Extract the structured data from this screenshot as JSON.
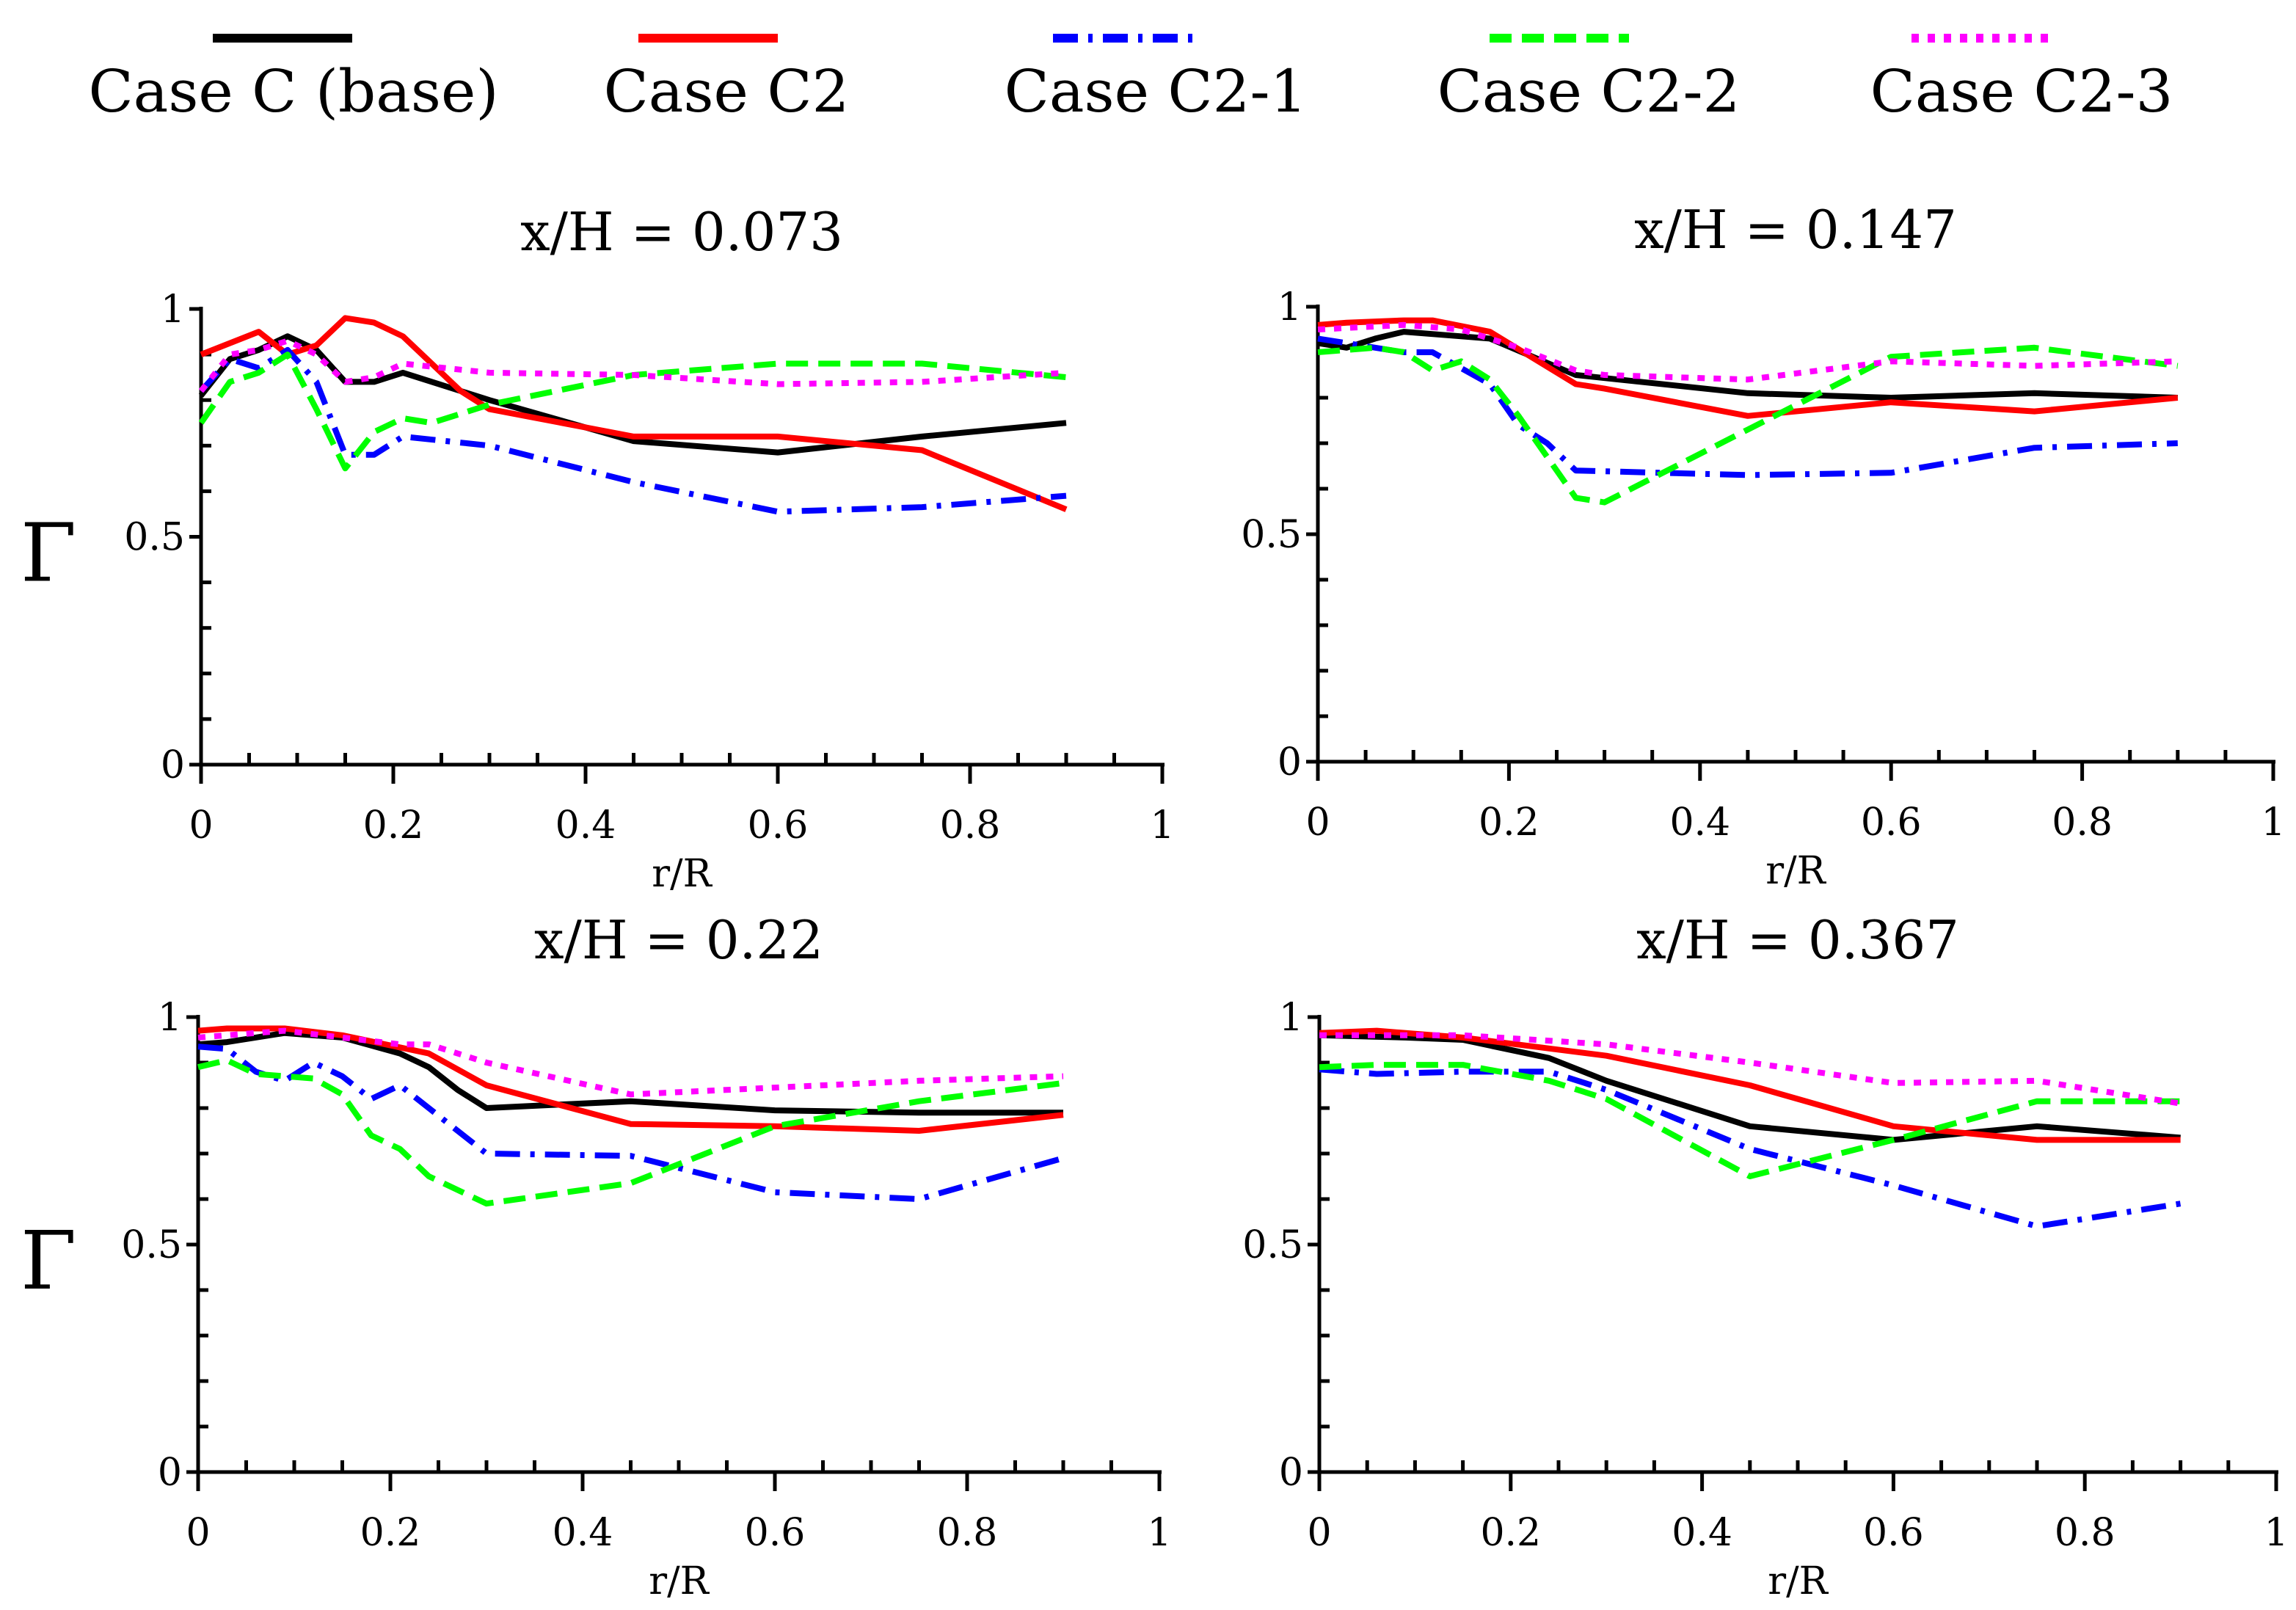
{
  "chart_data": {
    "type": "line",
    "legend": {
      "placement": "top",
      "entries": [
        {
          "name": "Case C (base)",
          "color": "#000000",
          "dash": "solid"
        },
        {
          "name": "Case C2",
          "color": "#ff0000",
          "dash": "solid"
        },
        {
          "name": "Case C2-1",
          "color": "#0000ff",
          "dash": "dashdot"
        },
        {
          "name": "Case C2-2",
          "color": "#00ff00",
          "dash": "dashed"
        },
        {
          "name": "Case C2-3",
          "color": "#ff00ff",
          "dash": "dotted"
        }
      ]
    },
    "panels": [
      {
        "title": "x/H = 0.073",
        "xlabel": "r/R",
        "ylabel": "Γ",
        "xlim": [
          0,
          1
        ],
        "ylim": [
          0,
          1
        ],
        "xticks": [
          "0",
          "0.2",
          "0.4",
          "0.6",
          "0.8",
          "1"
        ],
        "yticks": [
          "0",
          "0.5",
          "1"
        ],
        "series": [
          {
            "name": "Case C (base)",
            "x": [
              0,
              0.03,
              0.06,
              0.09,
              0.12,
              0.15,
              0.18,
              0.21,
              0.27,
              0.3,
              0.45,
              0.6,
              0.75,
              0.9
            ],
            "y": [
              0.81,
              0.89,
              0.91,
              0.94,
              0.91,
              0.84,
              0.84,
              0.86,
              0.82,
              0.8,
              0.71,
              0.685,
              0.72,
              0.75
            ]
          },
          {
            "name": "Case C2",
            "x": [
              0,
              0.06,
              0.09,
              0.12,
              0.15,
              0.18,
              0.21,
              0.27,
              0.3,
              0.45,
              0.6,
              0.75,
              0.9
            ],
            "y": [
              0.9,
              0.95,
              0.9,
              0.92,
              0.98,
              0.97,
              0.94,
              0.82,
              0.78,
              0.72,
              0.72,
              0.69,
              0.56
            ]
          },
          {
            "name": "Case C2-1",
            "x": [
              0,
              0.03,
              0.06,
              0.09,
              0.12,
              0.15,
              0.18,
              0.21,
              0.3,
              0.45,
              0.6,
              0.75,
              0.9
            ],
            "y": [
              0.82,
              0.89,
              0.87,
              0.91,
              0.84,
              0.68,
              0.68,
              0.72,
              0.7,
              0.62,
              0.555,
              0.565,
              0.59
            ]
          },
          {
            "name": "Case C2-2",
            "x": [
              0,
              0.03,
              0.06,
              0.09,
              0.12,
              0.15,
              0.18,
              0.21,
              0.24,
              0.3,
              0.45,
              0.6,
              0.75,
              0.9
            ],
            "y": [
              0.75,
              0.84,
              0.86,
              0.9,
              0.78,
              0.65,
              0.73,
              0.76,
              0.75,
              0.79,
              0.855,
              0.88,
              0.88,
              0.85
            ]
          },
          {
            "name": "Case C2-3",
            "x": [
              0,
              0.03,
              0.06,
              0.09,
              0.12,
              0.15,
              0.18,
              0.21,
              0.3,
              0.45,
              0.6,
              0.75,
              0.9
            ],
            "y": [
              0.82,
              0.9,
              0.91,
              0.93,
              0.9,
              0.84,
              0.85,
              0.88,
              0.86,
              0.855,
              0.835,
              0.84,
              0.86
            ]
          }
        ]
      },
      {
        "title": "x/H = 0.147",
        "xlabel": "r/R",
        "ylabel": "",
        "xlim": [
          0,
          1
        ],
        "ylim": [
          0,
          1
        ],
        "xticks": [
          "0",
          "0.2",
          "0.4",
          "0.6",
          "0.8",
          "1"
        ],
        "yticks": [
          "0",
          "0.5",
          "1"
        ],
        "series": [
          {
            "name": "Case C (base)",
            "x": [
              0,
              0.03,
              0.06,
              0.09,
              0.15,
              0.18,
              0.27,
              0.45,
              0.6,
              0.75,
              0.9
            ],
            "y": [
              0.92,
              0.91,
              0.93,
              0.945,
              0.935,
              0.93,
              0.85,
              0.81,
              0.8,
              0.81,
              0.8
            ]
          },
          {
            "name": "Case C2",
            "x": [
              0,
              0.03,
              0.09,
              0.12,
              0.18,
              0.27,
              0.3,
              0.45,
              0.6,
              0.75,
              0.9
            ],
            "y": [
              0.96,
              0.965,
              0.97,
              0.97,
              0.945,
              0.83,
              0.82,
              0.76,
              0.79,
              0.77,
              0.8
            ]
          },
          {
            "name": "Case C2-1",
            "x": [
              0,
              0.06,
              0.09,
              0.12,
              0.18,
              0.21,
              0.24,
              0.27,
              0.45,
              0.6,
              0.75,
              0.9
            ],
            "y": [
              0.93,
              0.91,
              0.9,
              0.9,
              0.83,
              0.74,
              0.7,
              0.64,
              0.63,
              0.635,
              0.69,
              0.7
            ]
          },
          {
            "name": "Case C2-2",
            "x": [
              0,
              0.06,
              0.09,
              0.12,
              0.15,
              0.18,
              0.21,
              0.27,
              0.3,
              0.45,
              0.6,
              0.75,
              0.9
            ],
            "y": [
              0.9,
              0.91,
              0.9,
              0.86,
              0.88,
              0.84,
              0.76,
              0.58,
              0.57,
              0.73,
              0.89,
              0.91,
              0.87
            ]
          },
          {
            "name": "Case C2-3",
            "x": [
              0,
              0.09,
              0.15,
              0.21,
              0.27,
              0.3,
              0.45,
              0.6,
              0.75,
              0.9
            ],
            "y": [
              0.95,
              0.96,
              0.95,
              0.91,
              0.86,
              0.85,
              0.84,
              0.88,
              0.87,
              0.88
            ]
          }
        ]
      },
      {
        "title": "x/H = 0.22",
        "xlabel": "r/R",
        "ylabel": "Γ",
        "xlim": [
          0,
          1
        ],
        "ylim": [
          0,
          1
        ],
        "xticks": [
          "0",
          "0.2",
          "0.4",
          "0.6",
          "0.8",
          "1"
        ],
        "yticks": [
          "0",
          "0.5",
          "1"
        ],
        "series": [
          {
            "name": "Case C (base)",
            "x": [
              0,
              0.03,
              0.09,
              0.15,
              0.21,
              0.24,
              0.27,
              0.3,
              0.45,
              0.6,
              0.75,
              0.9
            ],
            "y": [
              0.94,
              0.945,
              0.965,
              0.955,
              0.92,
              0.89,
              0.84,
              0.8,
              0.815,
              0.795,
              0.79,
              0.79
            ]
          },
          {
            "name": "Case C2",
            "x": [
              0,
              0.03,
              0.09,
              0.15,
              0.24,
              0.3,
              0.45,
              0.6,
              0.75,
              0.9
            ],
            "y": [
              0.97,
              0.975,
              0.975,
              0.96,
              0.92,
              0.85,
              0.765,
              0.76,
              0.75,
              0.785
            ]
          },
          {
            "name": "Case C2-1",
            "x": [
              0,
              0.03,
              0.06,
              0.09,
              0.12,
              0.15,
              0.18,
              0.21,
              0.24,
              0.3,
              0.45,
              0.6,
              0.75,
              0.9
            ],
            "y": [
              0.935,
              0.93,
              0.88,
              0.86,
              0.9,
              0.87,
              0.82,
              0.85,
              0.8,
              0.7,
              0.695,
              0.615,
              0.6,
              0.69
            ]
          },
          {
            "name": "Case C2-2",
            "x": [
              0,
              0.03,
              0.06,
              0.09,
              0.12,
              0.15,
              0.18,
              0.21,
              0.24,
              0.3,
              0.45,
              0.6,
              0.75,
              0.9
            ],
            "y": [
              0.89,
              0.905,
              0.875,
              0.87,
              0.865,
              0.83,
              0.74,
              0.71,
              0.65,
              0.59,
              0.635,
              0.76,
              0.815,
              0.855
            ]
          },
          {
            "name": "Case C2-3",
            "x": [
              0,
              0.09,
              0.15,
              0.21,
              0.24,
              0.3,
              0.45,
              0.6,
              0.75,
              0.9
            ],
            "y": [
              0.955,
              0.97,
              0.955,
              0.94,
              0.94,
              0.9,
              0.83,
              0.845,
              0.86,
              0.87
            ]
          }
        ]
      },
      {
        "title": "x/H = 0.367",
        "xlabel": "r/R",
        "ylabel": "",
        "xlim": [
          0,
          1
        ],
        "ylim": [
          0,
          1
        ],
        "xticks": [
          "0",
          "0.2",
          "0.4",
          "0.6",
          "0.8",
          "1"
        ],
        "yticks": [
          "0",
          "0.5",
          "1"
        ],
        "series": [
          {
            "name": "Case C (base)",
            "x": [
              0,
              0.09,
              0.15,
              0.24,
              0.3,
              0.45,
              0.6,
              0.75,
              0.9
            ],
            "y": [
              0.96,
              0.955,
              0.95,
              0.91,
              0.86,
              0.76,
              0.73,
              0.76,
              0.735
            ]
          },
          {
            "name": "Case C2",
            "x": [
              0,
              0.06,
              0.15,
              0.3,
              0.45,
              0.6,
              0.75,
              0.9
            ],
            "y": [
              0.965,
              0.97,
              0.955,
              0.915,
              0.85,
              0.76,
              0.73,
              0.73
            ]
          },
          {
            "name": "Case C2-1",
            "x": [
              0,
              0.06,
              0.15,
              0.24,
              0.3,
              0.45,
              0.6,
              0.75,
              0.9
            ],
            "y": [
              0.885,
              0.875,
              0.88,
              0.88,
              0.84,
              0.71,
              0.63,
              0.54,
              0.59
            ]
          },
          {
            "name": "Case C2-2",
            "x": [
              0,
              0.06,
              0.15,
              0.24,
              0.3,
              0.45,
              0.6,
              0.75,
              0.9
            ],
            "y": [
              0.89,
              0.895,
              0.895,
              0.86,
              0.82,
              0.65,
              0.73,
              0.815,
              0.815
            ]
          },
          {
            "name": "Case C2-3",
            "x": [
              0,
              0.15,
              0.3,
              0.45,
              0.6,
              0.75,
              0.9
            ],
            "y": [
              0.96,
              0.96,
              0.94,
              0.9,
              0.855,
              0.86,
              0.81
            ]
          }
        ]
      }
    ]
  }
}
